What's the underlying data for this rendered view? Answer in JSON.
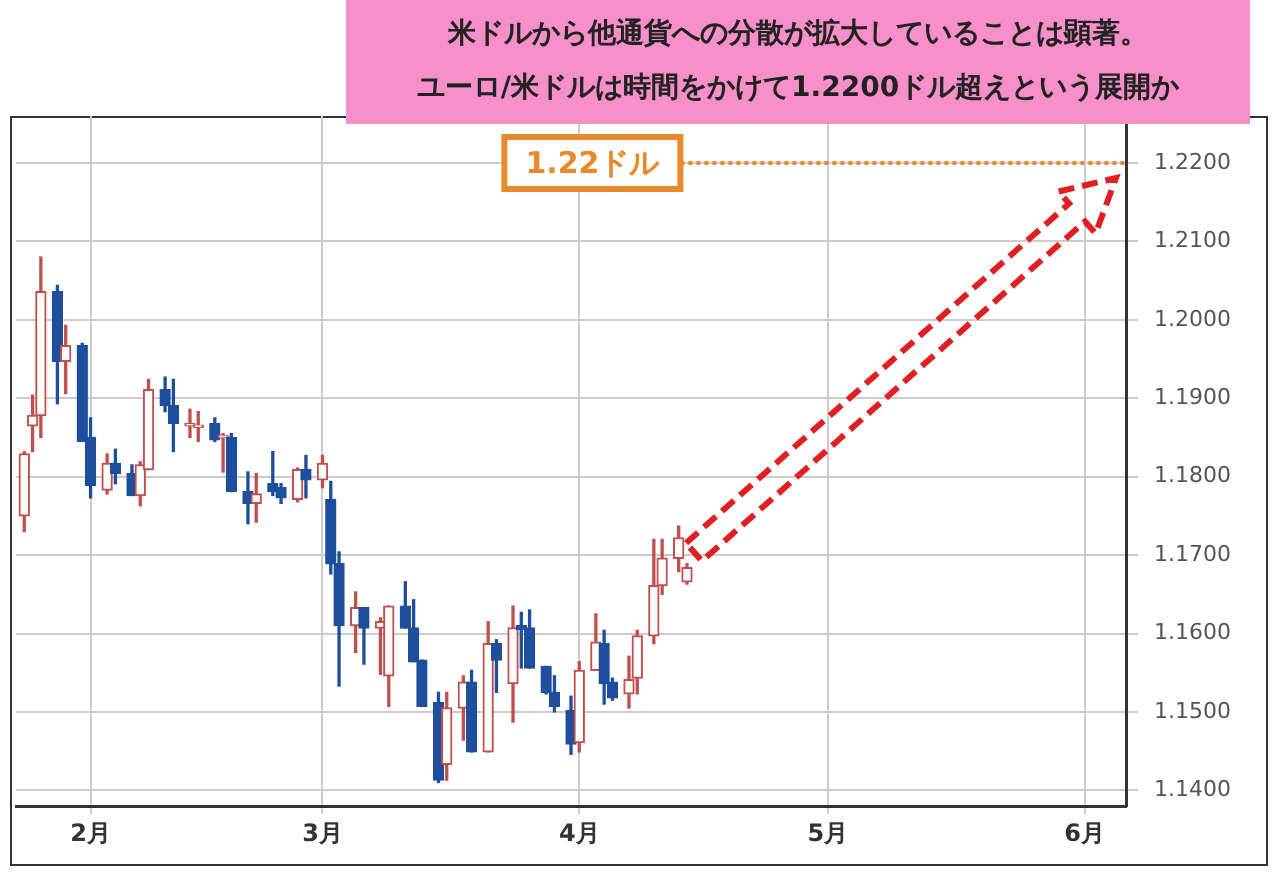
{
  "chart_data": {
    "type": "candlestick",
    "title": "米ドルから他通貨への分散が拡大していることは顕著。",
    "subtitle": "ユーロ/米ドルは時間をかけて1.2200ドル超えという展開か",
    "x": [
      "--01-24",
      "--01-25",
      "--01-26",
      "--01-28",
      "--01-29",
      "--01-31",
      "--02-01",
      "--02-03",
      "--02-04",
      "--02-06",
      "--02-07",
      "--02-08",
      "--02-10",
      "--02-11",
      "--02-13",
      "--02-14",
      "--02-16",
      "--02-17",
      "--02-18",
      "--02-20",
      "--02-21",
      "--02-23",
      "--02-24",
      "--02-26",
      "--02-27",
      "--03-01",
      "--03-02",
      "--03-03",
      "--03-05",
      "--03-06",
      "--03-08",
      "--03-09",
      "--03-11",
      "--03-12",
      "--03-13",
      "--03-15",
      "--03-16",
      "--03-18",
      "--03-19",
      "--03-21",
      "--03-22",
      "--03-24",
      "--03-25",
      "--03-26",
      "--03-28",
      "--03-29",
      "--03-31",
      "--04-01",
      "--04-03",
      "--04-04",
      "--04-05",
      "--04-07",
      "--04-08",
      "--04-10",
      "--04-11",
      "--04-13",
      "--04-14"
    ],
    "ohlc": [
      [
        1.175,
        1.1832,
        1.173,
        1.1829
      ],
      [
        1.1865,
        1.1904,
        1.1832,
        1.1878
      ],
      [
        1.1878,
        1.208,
        1.185,
        1.2036
      ],
      [
        1.2036,
        1.2044,
        1.1893,
        1.1947
      ],
      [
        1.1947,
        1.1993,
        1.1906,
        1.1967
      ],
      [
        1.1967,
        1.197,
        1.1845,
        1.1845
      ],
      [
        1.185,
        1.1875,
        1.1773,
        1.1789
      ],
      [
        1.1783,
        1.1829,
        1.1778,
        1.1817
      ],
      [
        1.1817,
        1.1835,
        1.1791,
        1.1804
      ],
      [
        1.1804,
        1.1815,
        1.1776,
        1.1776
      ],
      [
        1.1776,
        1.1819,
        1.1763,
        1.1815
      ],
      [
        1.1809,
        1.1924,
        1.1809,
        1.1911
      ],
      [
        1.1911,
        1.1927,
        1.1883,
        1.1891
      ],
      [
        1.1891,
        1.1924,
        1.1832,
        1.1868
      ],
      [
        1.1865,
        1.1886,
        1.185,
        1.1868
      ],
      [
        1.1863,
        1.1883,
        1.1845,
        1.1865
      ],
      [
        1.1868,
        1.1875,
        1.1845,
        1.1847
      ],
      [
        1.185,
        1.1855,
        1.1806,
        1.1852
      ],
      [
        1.185,
        1.1855,
        1.1781,
        1.1781
      ],
      [
        1.1781,
        1.1806,
        1.174,
        1.1766
      ],
      [
        1.1766,
        1.1804,
        1.1742,
        1.1778
      ],
      [
        1.1791,
        1.1832,
        1.1776,
        1.1781
      ],
      [
        1.1786,
        1.1791,
        1.1766,
        1.1773
      ],
      [
        1.1771,
        1.1811,
        1.1768,
        1.1809
      ],
      [
        1.1809,
        1.1827,
        1.1773,
        1.1796
      ],
      [
        1.1796,
        1.1827,
        1.1786,
        1.1817
      ],
      [
        1.1771,
        1.1794,
        1.1676,
        1.1689
      ],
      [
        1.1689,
        1.1704,
        1.1533,
        1.161
      ],
      [
        1.161,
        1.1653,
        1.1576,
        1.1633
      ],
      [
        1.1633,
        1.1633,
        1.1561,
        1.1607
      ],
      [
        1.1607,
        1.162,
        1.1548,
        1.1615
      ],
      [
        1.1546,
        1.1635,
        1.1507,
        1.1635
      ],
      [
        1.1635,
        1.1666,
        1.1607,
        1.1607
      ],
      [
        1.1607,
        1.1643,
        1.1564,
        1.1564
      ],
      [
        1.1566,
        1.1566,
        1.1507,
        1.1507
      ],
      [
        1.1512,
        1.1525,
        1.141,
        1.1413
      ],
      [
        1.1433,
        1.1525,
        1.1413,
        1.1505
      ],
      [
        1.1505,
        1.1546,
        1.1464,
        1.1538
      ],
      [
        1.1538,
        1.1553,
        1.1449,
        1.1449
      ],
      [
        1.1449,
        1.1615,
        1.1449,
        1.1587
      ],
      [
        1.1587,
        1.1592,
        1.1525,
        1.1566
      ],
      [
        1.1536,
        1.1635,
        1.1487,
        1.1607
      ],
      [
        1.161,
        1.1627,
        1.1556,
        1.1605
      ],
      [
        1.1607,
        1.163,
        1.1556,
        1.1556
      ],
      [
        1.1558,
        1.1558,
        1.1523,
        1.1525
      ],
      [
        1.1525,
        1.1546,
        1.15,
        1.1507
      ],
      [
        1.1502,
        1.152,
        1.1446,
        1.1459
      ],
      [
        1.1461,
        1.1564,
        1.1449,
        1.1553
      ],
      [
        1.1553,
        1.1625,
        1.1553,
        1.1589
      ],
      [
        1.1587,
        1.1604,
        1.151,
        1.1536
      ],
      [
        1.1538,
        1.1543,
        1.1515,
        1.1518
      ],
      [
        1.1523,
        1.1571,
        1.1505,
        1.1541
      ],
      [
        1.1543,
        1.1604,
        1.1523,
        1.1597
      ],
      [
        1.1597,
        1.172,
        1.1587,
        1.1661
      ],
      [
        1.1661,
        1.172,
        1.165,
        1.1696
      ],
      [
        1.1696,
        1.1737,
        1.1679,
        1.1722
      ],
      [
        1.1666,
        1.1689,
        1.1663,
        1.1684
      ]
    ],
    "colors": [
      "#c0504d",
      "#c0504d",
      "#c0504d",
      "#1f4e9c",
      "#c0504d",
      "#1f4e9c",
      "#1f4e9c",
      "#c0504d",
      "#1f4e9c",
      "#1f4e9c",
      "#c0504d",
      "#c0504d",
      "#1f4e9c",
      "#1f4e9c",
      "#c0504d",
      "#c0504d",
      "#1f4e9c",
      "#c0504d",
      "#1f4e9c",
      "#1f4e9c",
      "#c0504d",
      "#1f4e9c",
      "#1f4e9c",
      "#c0504d",
      "#1f4e9c",
      "#c0504d",
      "#1f4e9c",
      "#1f4e9c",
      "#c0504d",
      "#1f4e9c",
      "#c0504d",
      "#c0504d",
      "#1f4e9c",
      "#1f4e9c",
      "#1f4e9c",
      "#1f4e9c",
      "#c0504d",
      "#c0504d",
      "#1f4e9c",
      "#c0504d",
      "#1f4e9c",
      "#c0504d",
      "#1f4e9c",
      "#1f4e9c",
      "#1f4e9c",
      "#1f4e9c",
      "#1f4e9c",
      "#c0504d",
      "#c0504d",
      "#1f4e9c",
      "#1f4e9c",
      "#c0504d",
      "#c0504d",
      "#c0504d",
      "#c0504d",
      "#c0504d",
      "#c0504d"
    ],
    "xlim": [
      "--01-23",
      "--06-06"
    ],
    "xticks": [
      {
        "value": "--02-01",
        "label": "2月"
      },
      {
        "value": "--03-01",
        "label": "3月"
      },
      {
        "value": "--04-01",
        "label": "4月"
      },
      {
        "value": "--05-01",
        "label": "5月"
      },
      {
        "value": "--06-01",
        "label": "6月"
      }
    ],
    "ylim": [
      1.138,
      1.226
    ],
    "yticks": [
      {
        "value": 1.14,
        "label": "1.1400"
      },
      {
        "value": 1.15,
        "label": "1.1500"
      },
      {
        "value": 1.16,
        "label": "1.1600"
      },
      {
        "value": 1.17,
        "label": "1.1700"
      },
      {
        "value": 1.18,
        "label": "1.1800"
      },
      {
        "value": 1.19,
        "label": "1.1900"
      },
      {
        "value": 1.2,
        "label": "1.2000"
      },
      {
        "value": 1.21,
        "label": "1.2100"
      },
      {
        "value": 1.22,
        "label": "1.2200"
      }
    ],
    "grid": true,
    "legend": false,
    "ref_lines": [
      {
        "axis": "y",
        "value": 1.22,
        "label": "1.22ドル",
        "color": "#e8892a",
        "line_style": "dotted"
      }
    ]
  }
}
